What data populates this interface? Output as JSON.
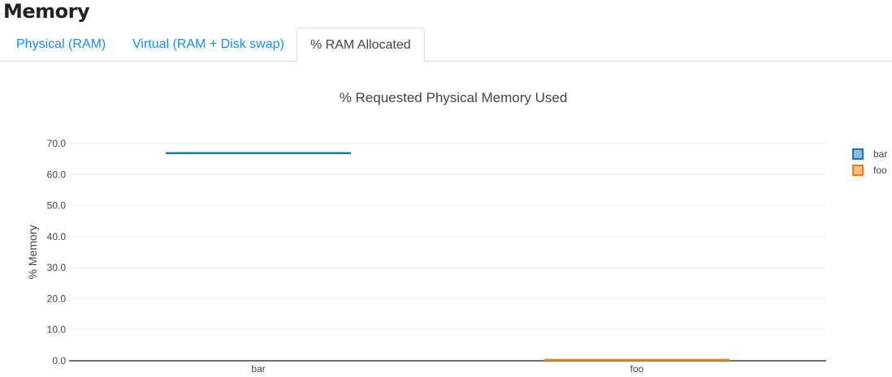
{
  "page_title": "Memory",
  "tabs": [
    {
      "label": "Physical (RAM)",
      "active": false
    },
    {
      "label": "Virtual (RAM + Disk swap)",
      "active": false
    },
    {
      "label": "% RAM Allocated",
      "active": true
    }
  ],
  "chart_data": {
    "type": "box",
    "title": "% Requested Physical Memory Used",
    "xlabel": "",
    "ylabel": "% Memory",
    "ylim": [
      0,
      70
    ],
    "yticks": [
      "0.0",
      "10.0",
      "20.0",
      "30.0",
      "40.0",
      "50.0",
      "60.0",
      "70.0"
    ],
    "categories": [
      "bar",
      "foo"
    ],
    "grid": true,
    "legend_placement": "top-right",
    "series": [
      {
        "name": "bar",
        "category": "bar",
        "value": 66.9,
        "color": "#1f77b4"
      },
      {
        "name": "foo",
        "category": "foo",
        "value": 0.3,
        "color": "#ff7f0e"
      }
    ]
  }
}
